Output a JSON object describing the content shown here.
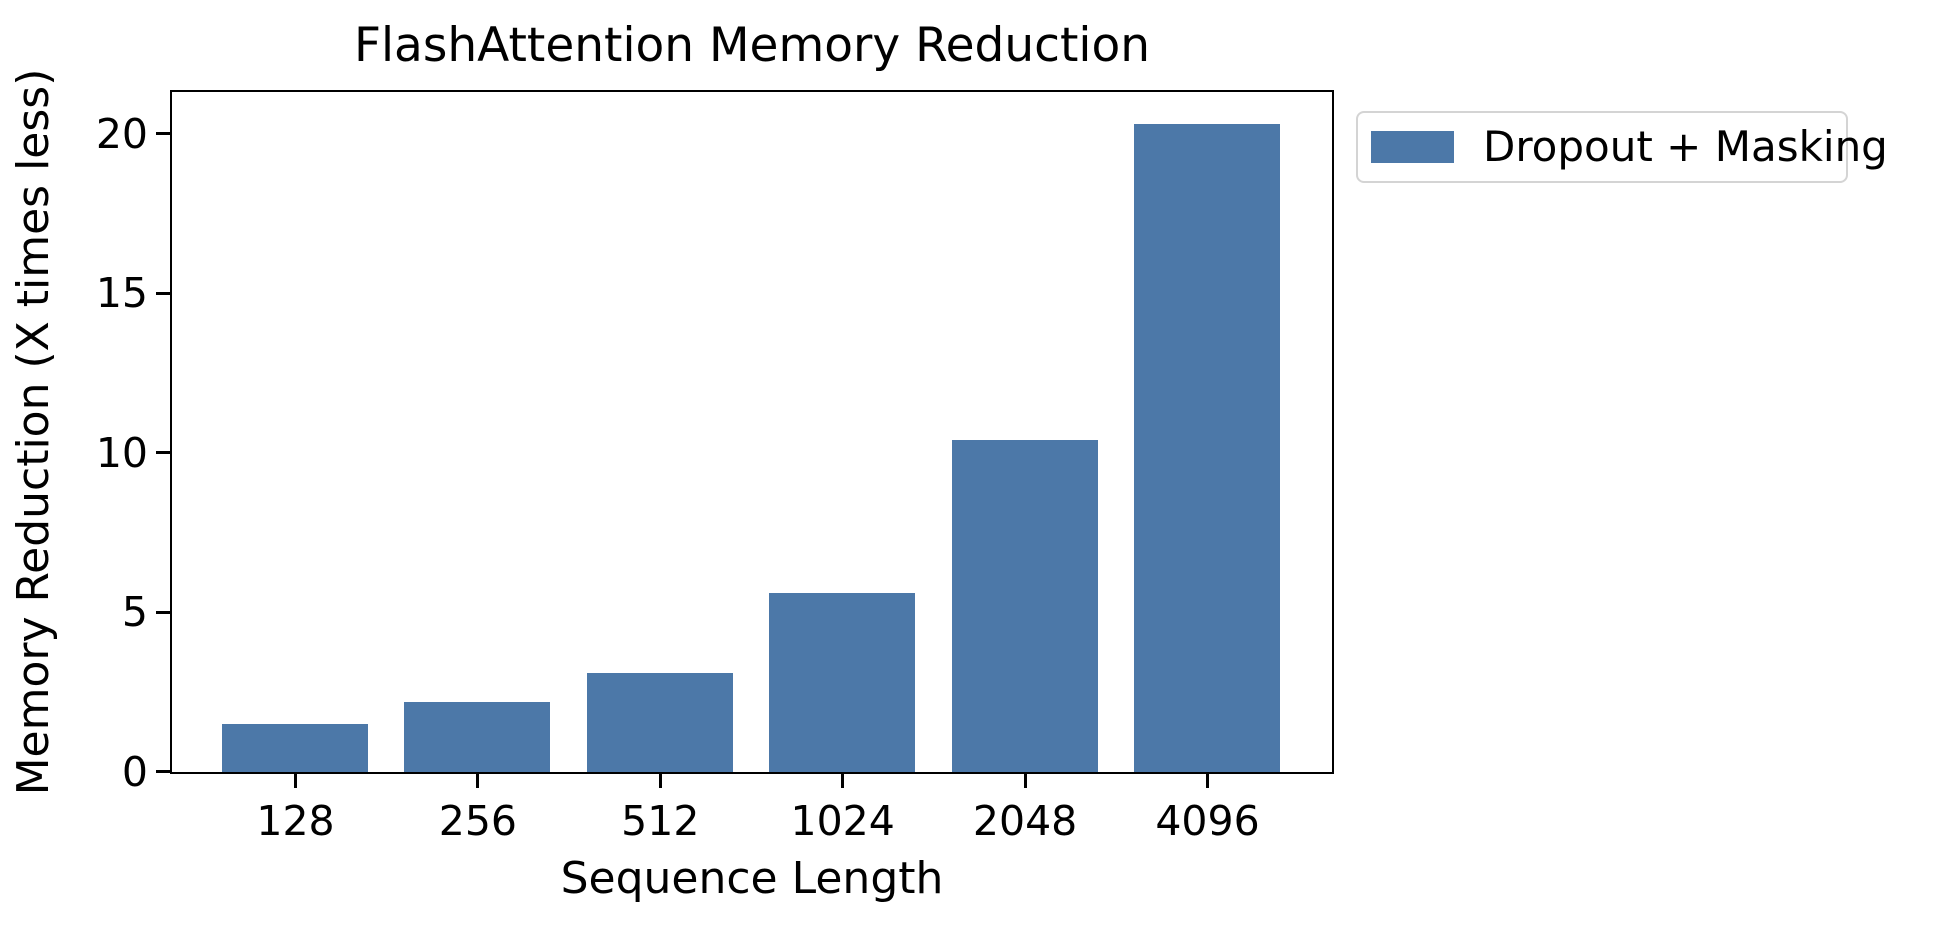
{
  "figure": {
    "background": "#ffffff",
    "text_color": "#000000",
    "frame_color": "#000000",
    "legend_border_color": "#d4d4d4"
  },
  "chart_data": {
    "type": "bar",
    "title": "FlashAttention Memory Reduction",
    "xlabel": "Sequence Length",
    "ylabel": "Memory Reduction (X times less)",
    "categories": [
      "128",
      "256",
      "512",
      "1024",
      "2048",
      "4096"
    ],
    "series": [
      {
        "name": "Dropout + Masking",
        "values": [
          1.5,
          2.2,
          3.1,
          5.6,
          10.4,
          20.3
        ]
      }
    ],
    "yticks": [
      0,
      5,
      10,
      15,
      20
    ],
    "ylim": [
      0,
      21.3
    ],
    "grid": false,
    "legend": {
      "labels": [
        "Dropout + Masking"
      ],
      "position": "outside-upper-right"
    },
    "bar_color": "#4C78A8"
  }
}
